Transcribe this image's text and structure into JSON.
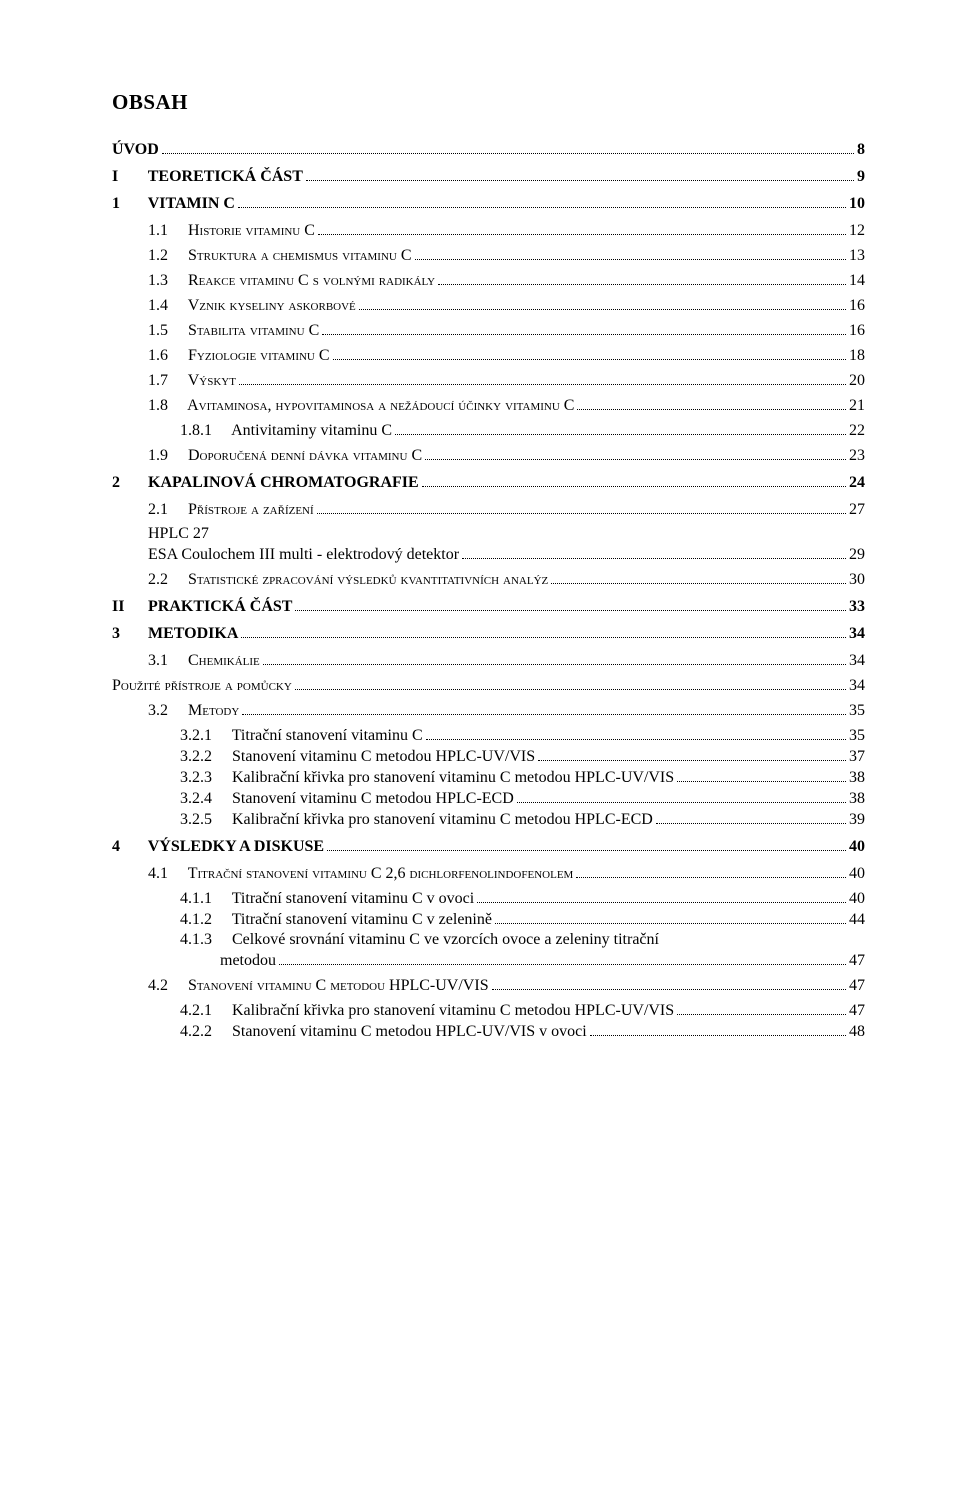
{
  "heading": "OBSAH",
  "entries": [
    {
      "level": 0,
      "num": "",
      "text": "ÚVOD",
      "page": "8",
      "smallcaps": false,
      "bold": true
    },
    {
      "level": 0,
      "num": "I",
      "text": "TEORETICKÁ ČÁST",
      "page": "9",
      "smallcaps": false,
      "bold": true
    },
    {
      "level": 1,
      "num": "1",
      "text": "VITAMIN C",
      "page": "10",
      "smallcaps": false,
      "bold": true
    },
    {
      "level": 2,
      "num": "1.1",
      "text": "Historie vitaminu C",
      "page": "12",
      "smallcaps": true,
      "bold": false
    },
    {
      "level": 2,
      "num": "1.2",
      "text": "Struktura a chemismus vitaminu C",
      "page": "13",
      "smallcaps": true,
      "bold": false
    },
    {
      "level": 2,
      "num": "1.3",
      "text": "Reakce vitaminu C s volnými radikály",
      "page": "14",
      "smallcaps": true,
      "bold": false
    },
    {
      "level": 2,
      "num": "1.4",
      "text": "Vznik kyseliny askorbové",
      "page": "16",
      "smallcaps": true,
      "bold": false
    },
    {
      "level": 2,
      "num": "1.5",
      "text": "Stabilita vitaminu C",
      "page": "16",
      "smallcaps": true,
      "bold": false
    },
    {
      "level": 2,
      "num": "1.6",
      "text": "Fyziologie vitaminu C",
      "page": "18",
      "smallcaps": true,
      "bold": false
    },
    {
      "level": 2,
      "num": "1.7",
      "text": "Výskyt",
      "page": "20",
      "smallcaps": true,
      "bold": false
    },
    {
      "level": 2,
      "num": "1.8",
      "text": "Avitaminosa, hypovitaminosa a nežádoucí účinky vitaminu C",
      "page": "21",
      "smallcaps": true,
      "bold": false
    },
    {
      "level": 3,
      "num": "1.8.1",
      "text": "Antivitaminy vitaminu C",
      "page": "22",
      "smallcaps": false,
      "bold": false
    },
    {
      "level": 2,
      "num": "1.9",
      "text": "Doporučená denní dávka vitaminu C",
      "page": "23",
      "smallcaps": true,
      "bold": false
    },
    {
      "level": 1,
      "num": "2",
      "text": "KAPALINOVÁ CHROMATOGRAFIE",
      "page": "24",
      "smallcaps": false,
      "bold": true
    },
    {
      "level": 2,
      "num": "2.1",
      "text": "Přístroje a zařízení",
      "page": "27",
      "smallcaps": true,
      "bold": false
    },
    {
      "level": "plain",
      "num": "",
      "text": "HPLC   27",
      "page": "",
      "smallcaps": false,
      "bold": false,
      "noleader": true
    },
    {
      "level": "plain",
      "num": "",
      "text": "ESA Coulochem III multi - elektrodový detektor",
      "page": "29",
      "smallcaps": false,
      "bold": false
    },
    {
      "level": 2,
      "num": "2.2",
      "text": "Statistické zpracování výsledků kvantitativních analýz",
      "page": "30",
      "smallcaps": true,
      "bold": false
    },
    {
      "level": 0,
      "num": "II",
      "text": "PRAKTICKÁ ČÁST",
      "page": "33",
      "smallcaps": false,
      "bold": true
    },
    {
      "level": 1,
      "num": "3",
      "text": "METODIKA",
      "page": "34",
      "smallcaps": false,
      "bold": true
    },
    {
      "level": 2,
      "num": "3.1",
      "text": "Chemikálie",
      "page": "34",
      "smallcaps": true,
      "bold": false
    },
    {
      "level": "plain0",
      "num": "",
      "text": "Použité přístroje a pomůcky",
      "page": "34",
      "smallcaps": true,
      "bold": false
    },
    {
      "level": 2,
      "num": "3.2",
      "text": "Metody",
      "page": "35",
      "smallcaps": true,
      "bold": false
    },
    {
      "level": 3,
      "num": "3.2.1",
      "text": "Titrační stanovení vitaminu C",
      "page": "35",
      "smallcaps": false,
      "bold": false
    },
    {
      "level": 3,
      "num": "3.2.2",
      "text": "Stanovení vitaminu C metodou HPLC-UV/VIS",
      "page": "37",
      "smallcaps": false,
      "bold": false
    },
    {
      "level": 3,
      "num": "3.2.3",
      "text": "Kalibrační křivka pro stanovení vitaminu C metodou HPLC-UV/VIS",
      "page": "38",
      "smallcaps": false,
      "bold": false
    },
    {
      "level": 3,
      "num": "3.2.4",
      "text": "Stanovení vitaminu C metodou HPLC-ECD",
      "page": "38",
      "smallcaps": false,
      "bold": false
    },
    {
      "level": 3,
      "num": "3.2.5",
      "text": "Kalibrační křivka pro stanovení vitaminu C metodou HPLC-ECD",
      "page": "39",
      "smallcaps": false,
      "bold": false
    },
    {
      "level": 1,
      "num": "4",
      "text": "VÝSLEDKY A DISKUSE",
      "page": "40",
      "smallcaps": false,
      "bold": true
    },
    {
      "level": 2,
      "num": "4.1",
      "text": "Titrační stanovení vitaminu C 2,6 dichlorfenolindofenolem",
      "page": "40",
      "smallcaps": true,
      "bold": false
    },
    {
      "level": 3,
      "num": "4.1.1",
      "text": "Titrační stanovení vitaminu C v ovoci",
      "page": "40",
      "smallcaps": false,
      "bold": false
    },
    {
      "level": 3,
      "num": "4.1.2",
      "text": "Titrační stanovení vitaminu C v zelenině",
      "page": "44",
      "smallcaps": false,
      "bold": false
    },
    {
      "level": 3,
      "num": "4.1.3",
      "text": "Celkové srovnání vitaminu C ve vzorcích ovoce a zeleniny titrační",
      "page": "",
      "smallcaps": false,
      "bold": false,
      "noleader": true
    },
    {
      "level": "plain3",
      "num": "",
      "text": "metodou",
      "page": "47",
      "smallcaps": false,
      "bold": false
    },
    {
      "level": 2,
      "num": "4.2",
      "text": "Stanovení vitaminu C metodou HPLC-UV/VIS",
      "page": "47",
      "smallcaps": true,
      "bold": false
    },
    {
      "level": 3,
      "num": "4.2.1",
      "text": "Kalibrační křivka pro stanovení vitaminu C metodou HPLC-UV/VIS",
      "page": "47",
      "smallcaps": false,
      "bold": false
    },
    {
      "level": 3,
      "num": "4.2.2",
      "text": "Stanovení vitaminu C metodou HPLC-UV/VIS v ovoci",
      "page": "48",
      "smallcaps": false,
      "bold": false
    }
  ]
}
